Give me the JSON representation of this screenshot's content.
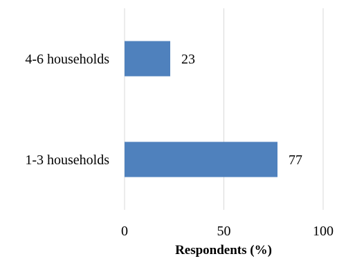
{
  "chart_data": {
    "type": "bar",
    "orientation": "horizontal",
    "categories": [
      "4-6 households",
      "1-3 households"
    ],
    "values": [
      23,
      77
    ],
    "data_labels": [
      "23",
      "77"
    ],
    "xlabel": "Respondents (%)",
    "ylabel": "",
    "xlim": [
      0,
      100
    ],
    "x_ticks": [
      "0",
      "50",
      "100"
    ],
    "grid": "vertical major gridlines",
    "legend": "none",
    "colors": {
      "bar": "#4f81bd",
      "grid": "#d9d9d9",
      "text": "#000000"
    }
  }
}
